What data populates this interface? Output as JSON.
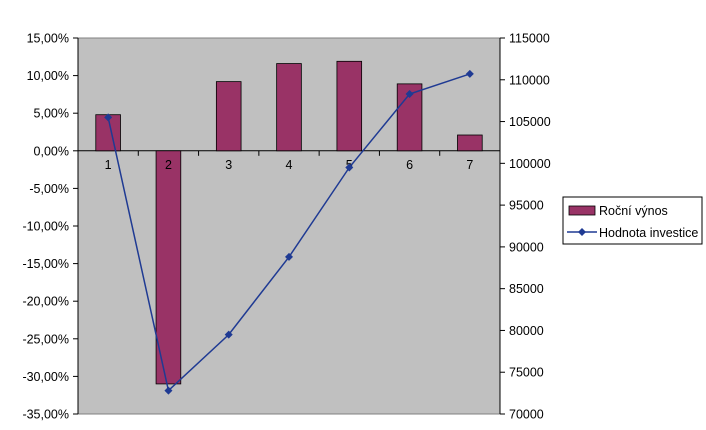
{
  "chart_data": {
    "type": "bar",
    "categories": [
      "1",
      "2",
      "3",
      "4",
      "5",
      "6",
      "7"
    ],
    "series": [
      {
        "name": "Roční výnos",
        "type": "bar",
        "axis": "left",
        "color": "#993366",
        "values": [
          0.048,
          -0.31,
          0.092,
          0.116,
          0.119,
          0.089,
          0.021
        ]
      },
      {
        "name": "Hodnota investice",
        "type": "line",
        "axis": "right",
        "color": "#1F3A93",
        "marker": "diamond",
        "values": [
          105500,
          72800,
          79500,
          88800,
          99500,
          108300,
          110700
        ]
      }
    ],
    "y_left": {
      "min": -0.35,
      "max": 0.15,
      "step": 0.05,
      "tick_labels": [
        "15,00%",
        "10,00%",
        "5,00%",
        "0,00%",
        "-5,00%",
        "-10,00%",
        "-15,00%",
        "-20,00%",
        "-25,00%",
        "-30,00%",
        "-35,00%"
      ]
    },
    "y_right": {
      "min": 70000,
      "max": 115000,
      "step": 5000,
      "tick_labels": [
        "115000",
        "110000",
        "105000",
        "100000",
        "95000",
        "90000",
        "85000",
        "80000",
        "75000",
        "70000"
      ]
    },
    "plot_background": "#C0C0C0",
    "legend_position": "right",
    "grid": false
  }
}
